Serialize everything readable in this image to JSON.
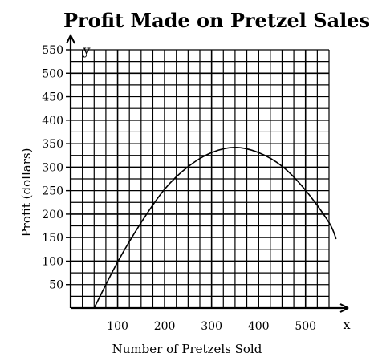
{
  "chart_data": {
    "type": "line",
    "title": "Profit Made on Pretzel Sales",
    "xlabel": "Number of Pretzels Sold",
    "ylabel": "Profit (dollars)",
    "x_axis_var": "x",
    "y_axis_var": "y",
    "xlim": [
      0,
      550
    ],
    "ylim": [
      0,
      550
    ],
    "x_ticks": [
      100,
      200,
      300,
      400,
      500
    ],
    "y_ticks": [
      50,
      100,
      150,
      200,
      250,
      300,
      350,
      400,
      450,
      500,
      550
    ],
    "grid": true,
    "series": [
      {
        "values_x": [
          50,
          100,
          150,
          200,
          250,
          300,
          350,
          400,
          450,
          500,
          550,
          565
        ],
        "values_y": [
          0,
          98,
          182,
          253,
          301,
          331,
          342,
          331,
          302,
          251,
          182,
          147
        ]
      }
    ],
    "colors": {
      "line": "#000000",
      "grid": "#000000",
      "background": "#ffffff"
    }
  }
}
